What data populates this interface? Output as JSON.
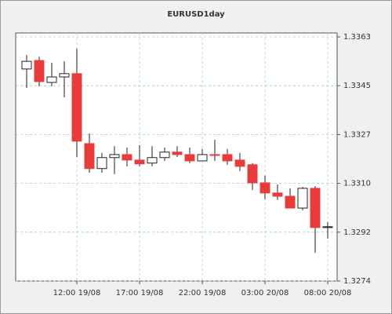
{
  "chart_data": {
    "type": "candlestick",
    "title": "EURUSD1day",
    "categories": [
      null,
      null,
      null,
      null,
      "12:00 19/08",
      null,
      null,
      null,
      null,
      "17:00 19/08",
      null,
      null,
      null,
      null,
      "22:00 19/08",
      null,
      null,
      null,
      null,
      "03:00 20/08",
      null,
      null,
      null,
      null,
      "08:00 20/08"
    ],
    "open": [
      1.33513,
      1.33544,
      1.33464,
      1.33484,
      1.33496,
      1.33241,
      1.3315,
      1.3319,
      1.33201,
      1.33181,
      1.3317,
      1.3319,
      1.3321,
      1.33201,
      1.33178,
      1.33201,
      1.33201,
      1.33181,
      1.33164,
      1.33098,
      1.33061,
      1.33049,
      1.33006,
      1.33078,
      1.32935
    ],
    "high": [
      1.33564,
      1.33558,
      1.33536,
      1.33541,
      1.33587,
      1.33278,
      1.33207,
      1.33232,
      1.33227,
      1.33235,
      1.33232,
      1.33227,
      1.33232,
      1.33227,
      1.33221,
      1.33255,
      1.33221,
      1.33207,
      1.3317,
      1.33124,
      1.33092,
      1.33078,
      1.33083,
      1.33086,
      1.32955
    ],
    "low": [
      1.33444,
      1.3345,
      1.3345,
      1.3341,
      1.33192,
      1.33135,
      1.33135,
      1.3313,
      1.33158,
      1.33158,
      1.33158,
      1.33178,
      1.33192,
      1.3317,
      1.33178,
      1.33178,
      1.33164,
      1.33141,
      1.33072,
      1.33038,
      1.33035,
      1.33006,
      1.32998,
      1.32843,
      1.32895
    ],
    "close": [
      1.33541,
      1.33467,
      1.33484,
      1.33496,
      1.3325,
      1.3315,
      1.3319,
      1.33201,
      1.33181,
      1.33167,
      1.3319,
      1.3321,
      1.33201,
      1.33178,
      1.33201,
      1.33198,
      1.33178,
      1.33158,
      1.33098,
      1.33061,
      1.33049,
      1.33006,
      1.33078,
      1.32935,
      1.32938
    ],
    "up_color": "#ffffff",
    "down_color": "#e83c3c",
    "ylim": [
      1.3274,
      1.3363
    ],
    "yticks": [
      {
        "value": 1.3274,
        "label": "1.3274"
      },
      {
        "value": 1.32918,
        "label": "1.3292"
      },
      {
        "value": 1.33096,
        "label": "1.3310"
      },
      {
        "value": 1.33274,
        "label": "1.3327"
      },
      {
        "value": 1.33452,
        "label": "1.3345"
      },
      {
        "value": 1.3363,
        "label": "1.3363"
      }
    ],
    "grid": true
  }
}
